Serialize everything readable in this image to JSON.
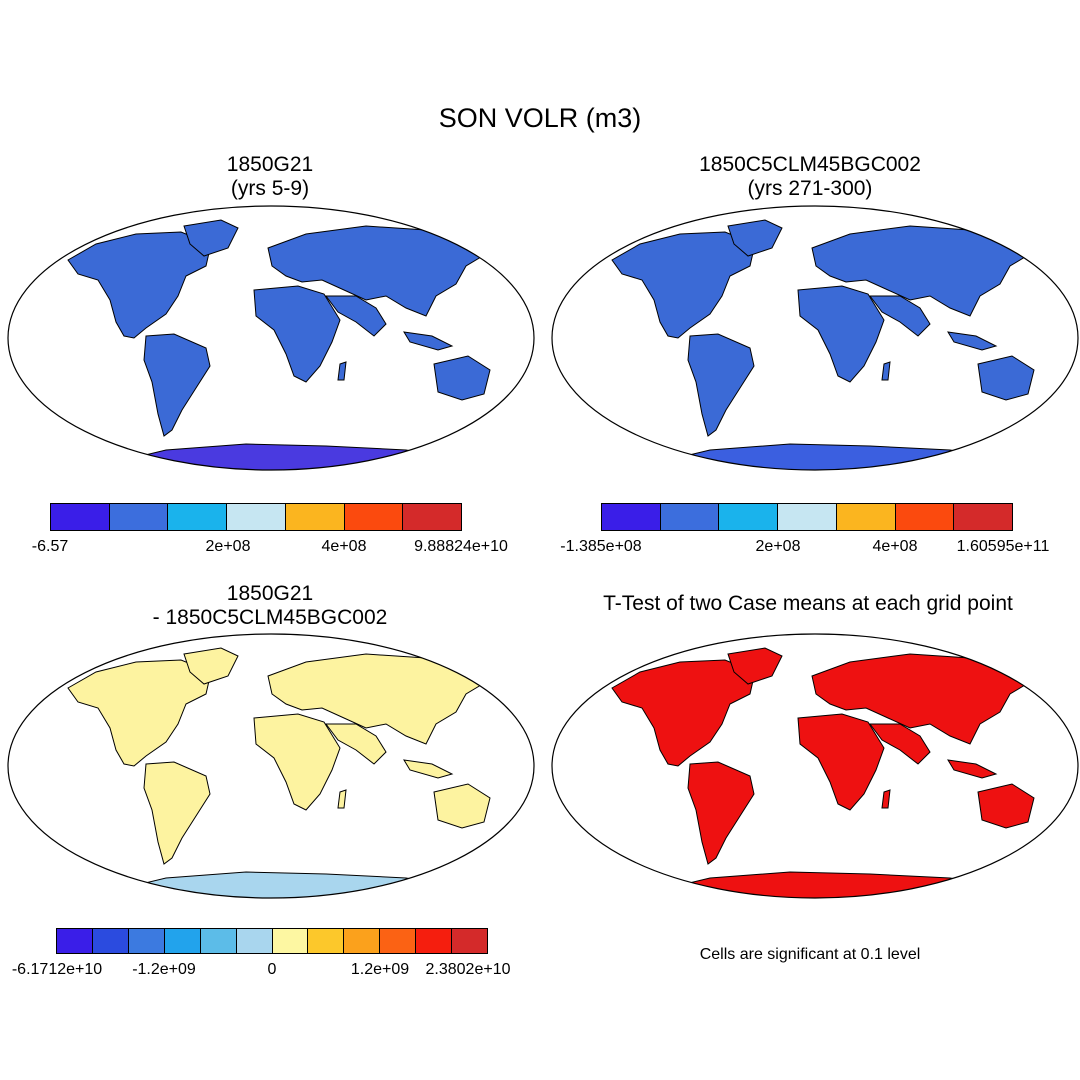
{
  "title": "SON VOLR (m3)",
  "panels": [
    {
      "id": "p1",
      "title_line1": "1850G21",
      "title_line2": "(yrs 5-9)",
      "colorbar": {
        "colors": [
          "#3a1ee8",
          "#3c6edd",
          "#1ab3ec",
          "#c6e6f2",
          "#fbb51f",
          "#fb4a0e",
          "#d42a2a"
        ],
        "tick_labels": [
          "-6.57",
          "2e+08",
          "4e+08",
          "9.88824e+10"
        ]
      },
      "land_color": "#3b6ad6",
      "ocean_color": "#ffffff",
      "antarctica_color": "#4a3ae0"
    },
    {
      "id": "p2",
      "title_line1": "1850C5CLM45BGC002",
      "title_line2": "(yrs 271-300)",
      "colorbar": {
        "colors": [
          "#3a1ee8",
          "#3c6edd",
          "#1ab3ec",
          "#c6e6f2",
          "#fbb51f",
          "#fb4a0e",
          "#d42a2a"
        ],
        "tick_labels": [
          "-1.385e+08",
          "2e+08",
          "4e+08",
          "1.60595e+11"
        ]
      },
      "land_color": "#3b6ad6",
      "ocean_color": "#ffffff",
      "antarctica_color": "#3b5fe0"
    },
    {
      "id": "p3",
      "title_line1": "1850G21",
      "title_line2": "- 1850C5CLM45BGC002",
      "colorbar": {
        "colors": [
          "#3a1ee8",
          "#2b4bdf",
          "#3c7ae0",
          "#22a3ec",
          "#5cbce8",
          "#a9d6ee",
          "#fdf7a2",
          "#fcc82b",
          "#fba11c",
          "#fb6214",
          "#f51e0e",
          "#d42a2a"
        ],
        "tick_labels": [
          "-6.1712e+10",
          "-1.2e+09",
          "0",
          "1.2e+09",
          "2.3802e+10"
        ]
      },
      "land_color": "#fdf3a0",
      "ocean_color": "#ffffff",
      "antarctica_color": "#a9d6ee"
    },
    {
      "id": "p4",
      "title_line1": "T-Test of two Case means at each grid point",
      "title_line2": "",
      "note": "Cells are significant at 0.1 level",
      "land_color": "#ee1111",
      "ocean_color": "#ffffff",
      "antarctica_color": "#ee1111"
    }
  ]
}
